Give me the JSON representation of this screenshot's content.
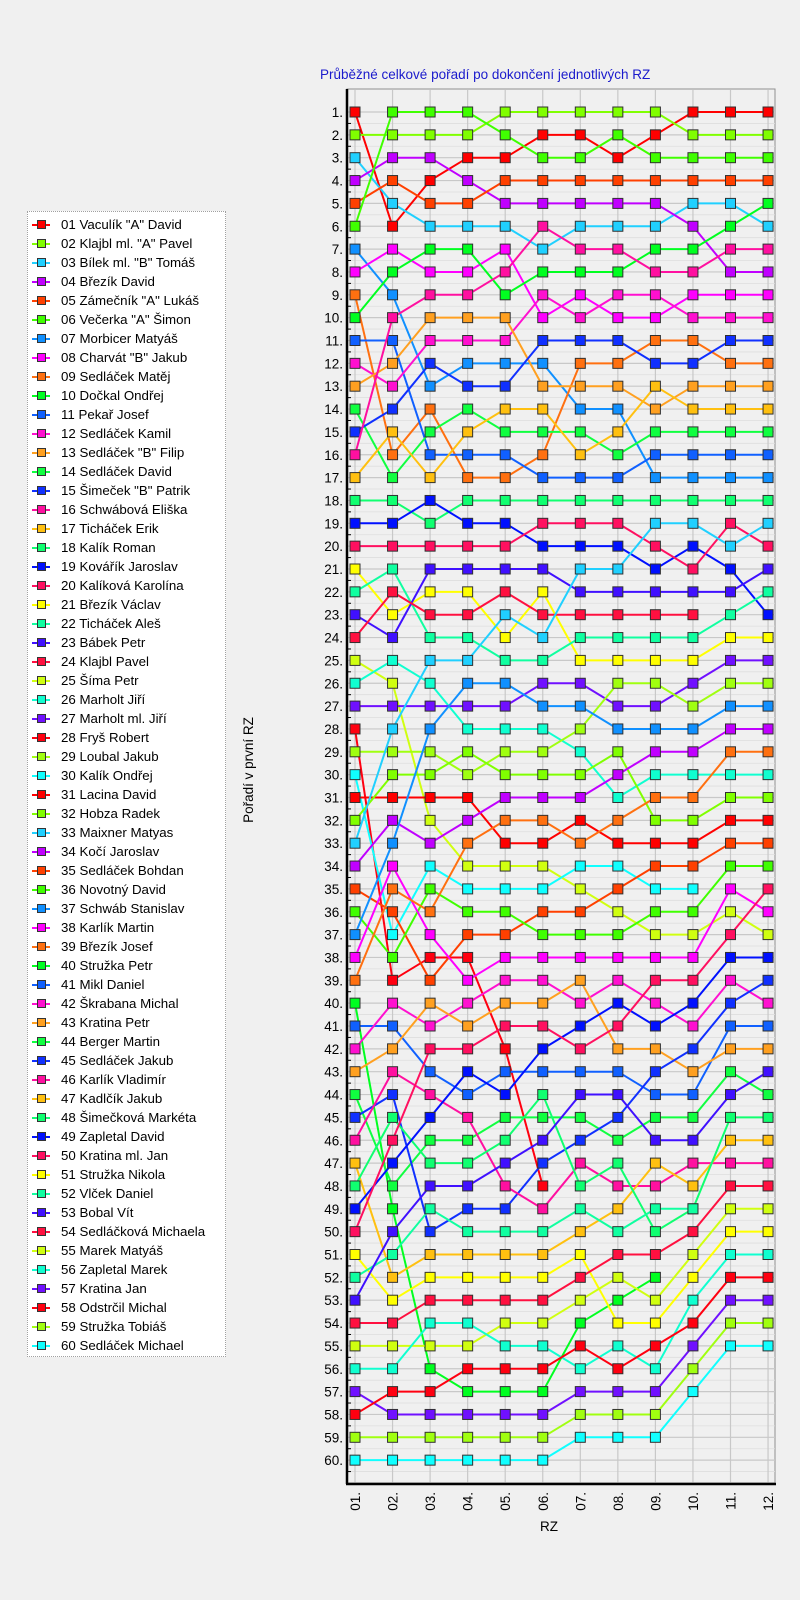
{
  "chart_data": {
    "type": "line",
    "title": "Průběžné celkové pořadí po dokončení jednotlivých RZ",
    "xlabel": "RZ",
    "ylabel": "Pořadí v první RZ",
    "categories": [
      "01.",
      "02.",
      "03.",
      "04.",
      "05.",
      "06.",
      "07.",
      "08.",
      "09.",
      "10.",
      "11.",
      "12."
    ],
    "y_ticks": [
      "1.",
      "2.",
      "3.",
      "4.",
      "5.",
      "6.",
      "7.",
      "8.",
      "9.",
      "10.",
      "11.",
      "12.",
      "13.",
      "14.",
      "15.",
      "16.",
      "17.",
      "18.",
      "19.",
      "20.",
      "21.",
      "22.",
      "23.",
      "24.",
      "25.",
      "26.",
      "27.",
      "28.",
      "29.",
      "30.",
      "31.",
      "32.",
      "33.",
      "34.",
      "35.",
      "36.",
      "37.",
      "38.",
      "39.",
      "40.",
      "41.",
      "42.",
      "43.",
      "44.",
      "45.",
      "46.",
      "47.",
      "48.",
      "49.",
      "50.",
      "51.",
      "52.",
      "53.",
      "54.",
      "55.",
      "56.",
      "57.",
      "58.",
      "59.",
      "60."
    ],
    "ylim": [
      1,
      60
    ],
    "y_inverted": true,
    "grid": true,
    "legend_position": "left",
    "series": [
      {
        "name": "01 Vaculík \"A\" David",
        "color": "#ff0000",
        "values": [
          1,
          6,
          4,
          3,
          3,
          2,
          2,
          3,
          2,
          1,
          1,
          1
        ]
      },
      {
        "name": "02 Klajbl ml. \"A\" Pavel",
        "color": "#80ff00",
        "values": [
          2,
          2,
          2,
          2,
          1,
          1,
          1,
          1,
          1,
          2,
          2,
          2
        ]
      },
      {
        "name": "03 Bílek ml. \"B\" Tomáš",
        "color": "#20d0ff",
        "values": [
          3,
          5,
          6,
          6,
          6,
          7,
          6,
          6,
          6,
          5,
          5,
          6
        ]
      },
      {
        "name": "04 Březík David",
        "color": "#c000ff",
        "values": [
          4,
          3,
          3,
          4,
          5,
          5,
          5,
          5,
          5,
          6,
          8,
          8
        ]
      },
      {
        "name": "05 Zámečník \"A\" Lukáš",
        "color": "#ff4000",
        "values": [
          5,
          4,
          5,
          5,
          4,
          4,
          4,
          4,
          4,
          4,
          4,
          4
        ]
      },
      {
        "name": "06 Večerka \"A\" Šimon",
        "color": "#40ff00",
        "values": [
          6,
          1,
          1,
          1,
          2,
          3,
          3,
          2,
          3,
          3,
          3,
          3
        ]
      },
      {
        "name": "07 Morbicer Matyáš",
        "color": "#1090ff",
        "values": [
          7,
          9,
          13,
          12,
          12,
          12,
          14,
          14,
          17,
          17,
          17,
          17
        ]
      },
      {
        "name": "08 Charvát \"B\" Jakub",
        "color": "#ff00ff",
        "values": [
          8,
          7,
          8,
          8,
          7,
          10,
          9,
          10,
          10,
          9,
          9,
          9
        ]
      },
      {
        "name": "09 Sedláček Matěj",
        "color": "#ff7010",
        "values": [
          9,
          16,
          14,
          17,
          17,
          16,
          12,
          12,
          11,
          11,
          12,
          12
        ]
      },
      {
        "name": "10 Dočkal Ondřej",
        "color": "#00ff20",
        "values": [
          10,
          8,
          7,
          7,
          9,
          8,
          8,
          8,
          7,
          7,
          6,
          5
        ]
      },
      {
        "name": "11 Pekař Josef",
        "color": "#1060ff",
        "values": [
          11,
          11,
          16,
          16,
          16,
          17,
          17,
          17,
          16,
          16,
          16,
          16
        ]
      },
      {
        "name": "12 Sedláček Kamil",
        "color": "#ff10d0",
        "values": [
          12,
          13,
          11,
          11,
          11,
          9,
          10,
          9,
          9,
          10,
          10,
          10
        ]
      },
      {
        "name": "13 Sedláček \"B\" Filip",
        "color": "#ffa020",
        "values": [
          13,
          12,
          10,
          10,
          10,
          13,
          13,
          13,
          14,
          13,
          13,
          13
        ]
      },
      {
        "name": "14 Sedláček David",
        "color": "#10ff40",
        "values": [
          14,
          17,
          15,
          14,
          15,
          15,
          15,
          16,
          15,
          15,
          15,
          15
        ]
      },
      {
        "name": "15 Šimeček \"B\" Patrik",
        "color": "#1030ff",
        "values": [
          15,
          14,
          12,
          13,
          13,
          11,
          11,
          11,
          12,
          12,
          11,
          11
        ]
      },
      {
        "name": "16 Schwábová Eliška",
        "color": "#ff10a0",
        "values": [
          16,
          10,
          9,
          9,
          8,
          6,
          7,
          7,
          8,
          8,
          7,
          7
        ]
      },
      {
        "name": "17 Ticháček Erik",
        "color": "#ffc010",
        "values": [
          17,
          15,
          17,
          15,
          14,
          14,
          16,
          15,
          13,
          14,
          14,
          14
        ]
      },
      {
        "name": "18 Kalík Roman",
        "color": "#10ff70",
        "values": [
          18,
          18,
          19,
          18,
          18,
          18,
          18,
          18,
          18,
          18,
          18,
          18
        ]
      },
      {
        "name": "19 Kovářík Jaroslav",
        "color": "#0010ff",
        "values": [
          19,
          19,
          18,
          19,
          19,
          20,
          20,
          20,
          21,
          20,
          21,
          23
        ]
      },
      {
        "name": "20 Kalíková Karolína",
        "color": "#ff1060",
        "values": [
          20,
          20,
          20,
          20,
          20,
          19,
          19,
          19,
          20,
          21,
          19,
          20
        ]
      },
      {
        "name": "21 Březík Václav",
        "color": "#ffff00",
        "values": [
          21,
          23,
          22,
          22,
          24,
          22,
          25,
          25,
          25,
          25,
          24,
          24
        ]
      },
      {
        "name": "22 Ticháček Aleš",
        "color": "#10ffa0",
        "values": [
          22,
          21,
          24,
          24,
          25,
          25,
          24,
          24,
          24,
          24,
          23,
          22
        ]
      },
      {
        "name": "23 Bábek Petr",
        "color": "#4010ff",
        "values": [
          23,
          24,
          21,
          21,
          21,
          21,
          22,
          22,
          22,
          22,
          22,
          21
        ]
      },
      {
        "name": "24 Klajbl Pavel",
        "color": "#ff1040",
        "values": [
          24,
          22,
          23,
          23,
          22,
          23,
          23,
          23,
          23,
          23,
          null,
          null
        ]
      },
      {
        "name": "25 Šíma Petr",
        "color": "#d0ff10",
        "values": [
          25,
          26,
          32,
          34,
          34,
          34,
          35,
          36,
          37,
          37,
          36,
          37
        ]
      },
      {
        "name": "26 Marholt Jiří",
        "color": "#10ffd0",
        "values": [
          26,
          25,
          26,
          28,
          28,
          28,
          29,
          31,
          30,
          30,
          30,
          30
        ]
      },
      {
        "name": "27 Marholt ml. Jiří",
        "color": "#7010ff",
        "values": [
          27,
          27,
          27,
          27,
          27,
          26,
          26,
          27,
          27,
          26,
          25,
          25
        ]
      },
      {
        "name": "28 Fryš Robert",
        "color": "#ff0010",
        "values": [
          28,
          39,
          38,
          38,
          42,
          48,
          null,
          null,
          null,
          null,
          null,
          null
        ]
      },
      {
        "name": "29 Loubal Jakub",
        "color": "#a0ff10",
        "values": [
          29,
          29,
          29,
          30,
          29,
          29,
          28,
          26,
          26,
          27,
          26,
          26
        ]
      },
      {
        "name": "30 Kalík Ondřej",
        "color": "#10ffff",
        "values": [
          30,
          37,
          34,
          35,
          35,
          35,
          34,
          34,
          35,
          35,
          null,
          null
        ]
      },
      {
        "name": "31 Lacina David",
        "color": "#ff0000",
        "values": [
          31,
          31,
          31,
          31,
          33,
          33,
          32,
          33,
          33,
          33,
          32,
          32
        ]
      },
      {
        "name": "32 Hobza Radek",
        "color": "#80ff00",
        "values": [
          32,
          30,
          30,
          29,
          30,
          30,
          30,
          29,
          32,
          32,
          31,
          31
        ]
      },
      {
        "name": "33 Maixner Matyas",
        "color": "#20d0ff",
        "values": [
          33,
          28,
          25,
          25,
          23,
          24,
          21,
          21,
          19,
          19,
          20,
          19
        ]
      },
      {
        "name": "34 Kočí Jaroslav",
        "color": "#c000ff",
        "values": [
          34,
          32,
          33,
          32,
          31,
          31,
          31,
          30,
          29,
          29,
          28,
          28
        ]
      },
      {
        "name": "35 Sedláček Bohdan",
        "color": "#ff4000",
        "values": [
          35,
          36,
          39,
          37,
          37,
          36,
          36,
          35,
          34,
          34,
          33,
          33
        ]
      },
      {
        "name": "36 Novotný David",
        "color": "#40ff00",
        "values": [
          36,
          38,
          35,
          36,
          36,
          37,
          37,
          37,
          36,
          36,
          34,
          34
        ]
      },
      {
        "name": "37 Schwáb Stanislav",
        "color": "#1090ff",
        "values": [
          37,
          33,
          28,
          26,
          26,
          27,
          27,
          28,
          28,
          28,
          27,
          27
        ]
      },
      {
        "name": "38 Karlík Martin",
        "color": "#ff00ff",
        "values": [
          38,
          34,
          37,
          39,
          38,
          38,
          38,
          38,
          38,
          38,
          35,
          36
        ]
      },
      {
        "name": "39 Březík Josef",
        "color": "#ff7010",
        "values": [
          39,
          35,
          36,
          33,
          32,
          32,
          33,
          32,
          31,
          31,
          29,
          29
        ]
      },
      {
        "name": "40 Stružka Petr",
        "color": "#00ff20",
        "values": [
          40,
          49,
          56,
          57,
          57,
          57,
          54,
          53,
          52,
          null,
          null,
          null
        ]
      },
      {
        "name": "41 Mikl Daniel",
        "color": "#1060ff",
        "values": [
          41,
          41,
          43,
          44,
          43,
          43,
          43,
          43,
          44,
          44,
          41,
          41
        ]
      },
      {
        "name": "42 Škrabana Michal",
        "color": "#ff10d0",
        "values": [
          42,
          40,
          41,
          40,
          39,
          39,
          40,
          39,
          40,
          41,
          39,
          40
        ]
      },
      {
        "name": "43 Kratina Petr",
        "color": "#ffa020",
        "values": [
          43,
          42,
          40,
          41,
          40,
          40,
          39,
          42,
          42,
          43,
          42,
          42
        ]
      },
      {
        "name": "44 Berger Martin",
        "color": "#10ff40",
        "values": [
          44,
          48,
          46,
          46,
          45,
          45,
          45,
          46,
          45,
          45,
          43,
          44
        ]
      },
      {
        "name": "45 Sedláček Jakub",
        "color": "#1030ff",
        "values": [
          45,
          44,
          50,
          49,
          49,
          47,
          46,
          45,
          43,
          42,
          40,
          39
        ]
      },
      {
        "name": "46 Karlík Vladimír",
        "color": "#ff10a0",
        "values": [
          46,
          43,
          44,
          45,
          48,
          49,
          47,
          48,
          48,
          47,
          47,
          47
        ]
      },
      {
        "name": "47 Kadlčík Jakub",
        "color": "#ffc010",
        "values": [
          47,
          52,
          51,
          51,
          51,
          51,
          50,
          49,
          47,
          48,
          46,
          46
        ]
      },
      {
        "name": "48 Šimečková Markéta",
        "color": "#10ff70",
        "values": [
          48,
          45,
          47,
          47,
          46,
          44,
          48,
          47,
          50,
          49,
          45,
          45
        ]
      },
      {
        "name": "49 Zapletal David",
        "color": "#0010ff",
        "values": [
          49,
          47,
          45,
          43,
          44,
          42,
          41,
          40,
          41,
          40,
          38,
          38
        ]
      },
      {
        "name": "50 Kratina ml. Jan",
        "color": "#ff1060",
        "values": [
          50,
          46,
          42,
          42,
          41,
          41,
          42,
          41,
          39,
          39,
          37,
          35
        ]
      },
      {
        "name": "51 Stružka Nikola",
        "color": "#ffff00",
        "values": [
          51,
          53,
          52,
          52,
          52,
          52,
          51,
          54,
          54,
          52,
          50,
          50
        ]
      },
      {
        "name": "52 Vlček Daniel",
        "color": "#10ffa0",
        "values": [
          52,
          51,
          49,
          50,
          50,
          50,
          49,
          50,
          49,
          49,
          null,
          null
        ]
      },
      {
        "name": "53 Bobal Vít",
        "color": "#4010ff",
        "values": [
          53,
          50,
          48,
          48,
          47,
          46,
          44,
          44,
          46,
          46,
          44,
          43
        ]
      },
      {
        "name": "54 Sedláčková Michaela",
        "color": "#ff1040",
        "values": [
          54,
          54,
          53,
          53,
          53,
          53,
          52,
          51,
          51,
          50,
          48,
          48
        ]
      },
      {
        "name": "55 Marek Matyáš",
        "color": "#d0ff10",
        "values": [
          55,
          55,
          55,
          55,
          54,
          54,
          53,
          52,
          53,
          51,
          49,
          49
        ]
      },
      {
        "name": "56 Zapletal Marek",
        "color": "#10ffd0",
        "values": [
          56,
          56,
          54,
          54,
          55,
          55,
          56,
          55,
          56,
          53,
          51,
          51
        ]
      },
      {
        "name": "57 Kratina Jan",
        "color": "#7010ff",
        "values": [
          57,
          58,
          58,
          58,
          58,
          58,
          57,
          57,
          57,
          55,
          53,
          53
        ]
      },
      {
        "name": "58 Odstrčil Michal",
        "color": "#ff0010",
        "values": [
          58,
          57,
          57,
          56,
          56,
          56,
          55,
          56,
          55,
          54,
          52,
          52
        ]
      },
      {
        "name": "59 Stružka Tobiáš",
        "color": "#a0ff10",
        "values": [
          59,
          59,
          59,
          59,
          59,
          59,
          58,
          58,
          58,
          56,
          54,
          54
        ]
      },
      {
        "name": "60 Sedláček Michael",
        "color": "#10ffff",
        "values": [
          60,
          60,
          60,
          60,
          60,
          60,
          59,
          59,
          59,
          57,
          55,
          55
        ]
      }
    ]
  }
}
